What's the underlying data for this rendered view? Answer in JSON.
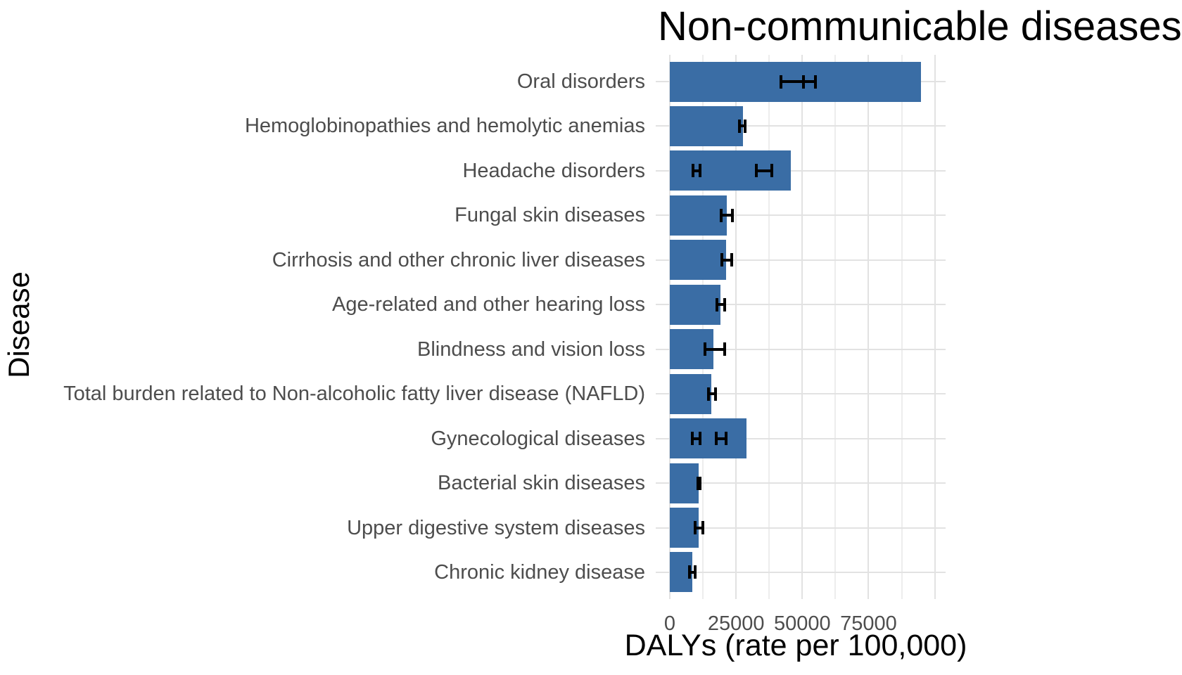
{
  "title": "Non-communicable diseases",
  "colors": {
    "bar_fill": "#3A6DA5",
    "grid_major": "#E2E2E2",
    "grid_minor": "#EDEDED",
    "error_bar": "#000000",
    "tick_label": "#4D4D4D",
    "title_text": "#000000",
    "background": "#FFFFFF"
  },
  "chart_data": {
    "type": "bar",
    "orientation": "horizontal",
    "title": "Non-communicable diseases",
    "xlabel": "DALYs (rate per 100,000)",
    "ylabel": "Disease",
    "xlim": [
      0,
      100000
    ],
    "x_tick_values": [
      0,
      25000,
      50000,
      75000
    ],
    "x_tick_labels": [
      "0",
      "25000",
      "50000",
      "75000"
    ],
    "x_gridlines_major": [
      0,
      25000,
      50000,
      75000,
      100000
    ],
    "x_gridlines_minor": [
      12500,
      37500,
      62500,
      87500
    ],
    "grid": true,
    "legend": false,
    "categories": [
      "Oral disorders",
      "Hemoglobinopathies and hemolytic anemias",
      "Headache disorders",
      "Fungal skin diseases",
      "Cirrhosis and other chronic liver diseases",
      "Age-related and other hearing loss",
      "Blindness and vision loss",
      "Total burden related to Non-alcoholic fatty liver disease (NAFLD)",
      "Gynecological diseases",
      "Bacterial skin diseases",
      "Upper digestive system diseases",
      "Chronic kidney disease"
    ],
    "values": [
      94700,
      27700,
      45600,
      21500,
      21200,
      19200,
      16500,
      15700,
      29000,
      10900,
      11000,
      8600
    ],
    "error_bars": [
      [
        [
          42000,
          50400
        ],
        [
          50400,
          54900
        ]
      ],
      [
        [
          26400,
          28500
        ]
      ],
      [
        [
          8700,
          11300
        ],
        [
          32700,
          38500
        ]
      ],
      [
        [
          19300,
          23700
        ]
      ],
      [
        [
          19700,
          23400
        ]
      ],
      [
        [
          17900,
          20600
        ]
      ],
      [
        [
          13300,
          20800
        ]
      ],
      [
        [
          14600,
          17300
        ]
      ],
      [
        [
          8400,
          11500
        ],
        [
          17400,
          21200
        ]
      ],
      [
        [
          10600,
          11400
        ]
      ],
      [
        [
          9500,
          12400
        ]
      ],
      [
        [
          7500,
          9500
        ]
      ]
    ]
  }
}
